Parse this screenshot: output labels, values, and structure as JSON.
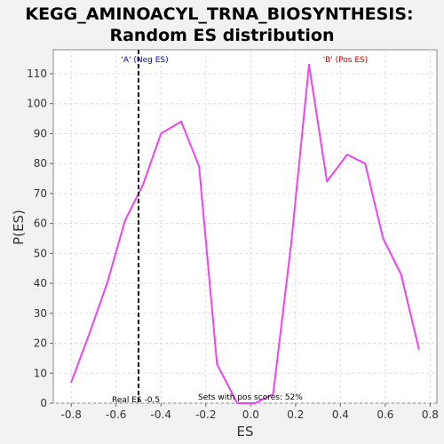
{
  "chart_data": {
    "type": "line",
    "title": "KEGG_AMINOACYL_TRNA_BIOSYNTHESIS:",
    "subtitle": "Random ES distribution",
    "xlabel": "ES",
    "ylabel": "P(ES)",
    "xlim": [
      -0.88,
      0.83
    ],
    "ylim": [
      0,
      118
    ],
    "x_ticks": [
      -0.8,
      -0.6,
      -0.4,
      -0.2,
      0.0,
      0.2,
      0.4,
      0.6,
      0.8
    ],
    "x_tick_labels": [
      "-0.8",
      "-0.6",
      "-0.4",
      "-0.2",
      "0.0",
      "0.2",
      "0.4",
      "0.6",
      "0.8"
    ],
    "y_ticks": [
      0,
      10,
      20,
      30,
      40,
      50,
      60,
      70,
      80,
      90,
      100,
      110
    ],
    "y_tick_labels": [
      "0",
      "10",
      "20",
      "30",
      "40",
      "50",
      "60",
      "70",
      "80",
      "90",
      "100",
      "110"
    ],
    "grid": true,
    "series": [
      {
        "color": "#ee44ee",
        "x": [
          -0.8,
          -0.72,
          -0.64,
          -0.56,
          -0.48,
          -0.4,
          -0.31,
          -0.23,
          -0.15,
          -0.06,
          0.02,
          0.1,
          0.18,
          0.26,
          0.34,
          0.43,
          0.51,
          0.59,
          0.67,
          0.75
        ],
        "y": [
          7,
          23,
          40,
          61,
          73,
          90,
          94,
          79,
          13,
          0,
          0,
          3,
          53,
          113,
          74,
          83,
          80,
          55,
          43,
          18
        ]
      }
    ],
    "real_es": -0.5,
    "annotations": {
      "neg_label": "'A' (Neg ES)",
      "neg_color": "#0000cc",
      "pos_label": "'B' (Pos ES)",
      "pos_color": "#cc0000",
      "real_es_label": "Real ES -0.5",
      "pos_scores_label": "Sets with pos scores: 52%"
    }
  }
}
